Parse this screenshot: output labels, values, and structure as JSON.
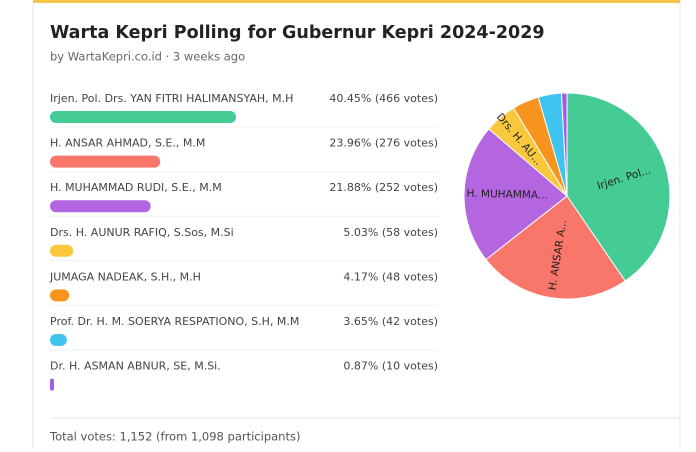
{
  "poll": {
    "title": "Warta Kepri Polling for Gubernur Kepri 2024-2029",
    "byline": "by WartaKepri.co.id · 3 weeks ago",
    "options": [
      {
        "name": "Irjen. Pol. Drs. YAN FITRI HALIMANSYAH, M.H",
        "label": "40.45% (466 votes)",
        "percent": 40.45,
        "color": "#45cc95",
        "pie_label": "Irjen. Pol..."
      },
      {
        "name": "H. ANSAR AHMAD, S.E., M.M",
        "label": "23.96% (276 votes)",
        "percent": 23.96,
        "color": "#f8776a",
        "pie_label": "H. ANSAR A..."
      },
      {
        "name": "H. MUHAMMAD RUDI, S.E., M.M",
        "label": "21.88% (252 votes)",
        "percent": 21.88,
        "color": "#b466e0",
        "pie_label": "H. MUHAMMA..."
      },
      {
        "name": "Drs. H. AUNUR RAFIQ, S.Sos, M.Si",
        "label": "5.03% (58 votes)",
        "percent": 5.03,
        "color": "#f9c83c",
        "pie_label": "Drs. H. AU..."
      },
      {
        "name": "JUMAGA NADEAK, S.H., M.H",
        "label": "4.17% (48 votes)",
        "percent": 4.17,
        "color": "#f7941d"
      },
      {
        "name": "Prof. Dr. H. M. SOERYA RESPATIONO, S.H, M.M",
        "label": "3.65% (42 votes)",
        "percent": 3.65,
        "color": "#3fc4f0"
      },
      {
        "name": "Dr. H. ASMAN ABNUR, SE, M.Si.",
        "label": "0.87% (10 votes)",
        "percent": 0.87,
        "color": "#a45ce8"
      }
    ],
    "total": "Total votes: 1,152 (from 1,098 participants)"
  }
}
